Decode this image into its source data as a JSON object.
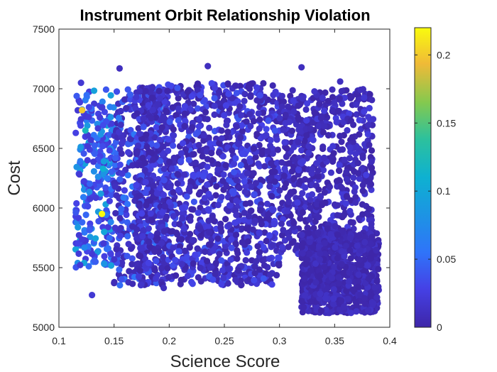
{
  "chart_data": {
    "type": "scatter",
    "title": "Instrument Orbit Relationship Violation",
    "xlabel": "Science Score",
    "ylabel": "Cost",
    "xlim": [
      0.1,
      0.4
    ],
    "ylim": [
      5000,
      7500
    ],
    "x_ticks": [
      0.1,
      0.15,
      0.2,
      0.25,
      0.3,
      0.35,
      0.4
    ],
    "x_tick_labels": [
      "0.1",
      "0.15",
      "0.2",
      "0.25",
      "0.3",
      "0.35",
      "0.4"
    ],
    "y_ticks": [
      5000,
      5500,
      6000,
      6500,
      7000,
      7500
    ],
    "y_tick_labels": [
      "5000",
      "5500",
      "6000",
      "6500",
      "7000",
      "7500"
    ],
    "grid": false,
    "colormap": "parula",
    "colorbar": {
      "clim": [
        0,
        0.22
      ],
      "ticks": [
        0,
        0.05,
        0.1,
        0.15,
        0.2
      ],
      "tick_labels": [
        "0",
        "0.05",
        "0.1",
        "0.15",
        "0.2"
      ]
    },
    "marker_color_low": "#3e26a8",
    "marker_color_high": "#f9fb0e",
    "notable_points": [
      {
        "x": 0.121,
        "y": 6820,
        "c": 0.2
      },
      {
        "x": 0.139,
        "y": 5950,
        "c": 0.22
      },
      {
        "x": 0.124,
        "y": 6650,
        "c": 0.12
      },
      {
        "x": 0.14,
        "y": 6330,
        "c": 0.11
      },
      {
        "x": 0.141,
        "y": 5800,
        "c": 0.1
      },
      {
        "x": 0.138,
        "y": 6120,
        "c": 0.09
      },
      {
        "x": 0.12,
        "y": 7050,
        "c": 0.02
      },
      {
        "x": 0.13,
        "y": 5270,
        "c": 0.02
      },
      {
        "x": 0.155,
        "y": 7170,
        "c": 0.01
      },
      {
        "x": 0.235,
        "y": 7190,
        "c": 0.01
      },
      {
        "x": 0.32,
        "y": 7180,
        "c": 0.01
      },
      {
        "x": 0.355,
        "y": 7060,
        "c": 0.01
      },
      {
        "x": 0.195,
        "y": 5330,
        "c": 0.01
      },
      {
        "x": 0.385,
        "y": 5200,
        "c": 0.01
      }
    ],
    "clusters": [
      {
        "x": [
          0.115,
          0.15
        ],
        "y": [
          5500,
          7000
        ],
        "c": [
          0.02,
          0.1
        ],
        "n": 260
      },
      {
        "x": [
          0.15,
          0.2
        ],
        "y": [
          5350,
          7000
        ],
        "c": [
          0.005,
          0.06
        ],
        "n": 420
      },
      {
        "x": [
          0.17,
          0.3
        ],
        "y": [
          5350,
          7050
        ],
        "c": [
          0.0,
          0.04
        ],
        "n": 1300
      },
      {
        "x": [
          0.3,
          0.385
        ],
        "y": [
          5600,
          7000
        ],
        "c": [
          0.0,
          0.025
        ],
        "n": 700
      },
      {
        "x": [
          0.32,
          0.39
        ],
        "y": [
          5120,
          5800
        ],
        "c": [
          0.0,
          0.015
        ],
        "n": 850
      }
    ]
  }
}
